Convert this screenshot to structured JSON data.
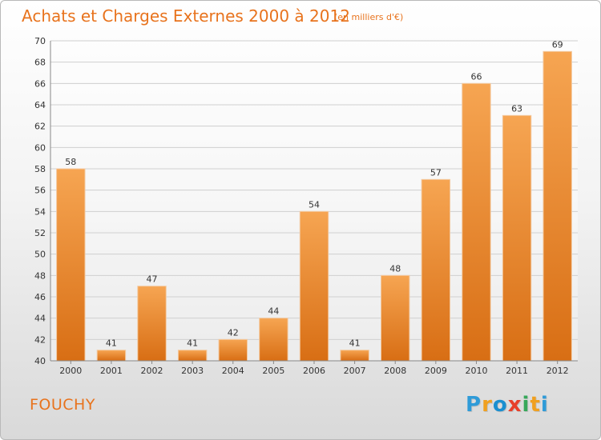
{
  "header": {
    "title": "Achats et Charges Externes 2000 à 2012",
    "subtitle": "(en milliers d'€)"
  },
  "footer": {
    "location": "FOUCHY",
    "logo_letters": [
      {
        "char": "P",
        "color": "#2f9bd8"
      },
      {
        "char": "r",
        "color": "#f0a020"
      },
      {
        "char": "o",
        "color": "#1a8fd0"
      },
      {
        "char": "x",
        "color": "#e8402a"
      },
      {
        "char": "i",
        "color": "#36a85a"
      },
      {
        "char": "t",
        "color": "#f0a020"
      },
      {
        "char": "i",
        "color": "#2f9bd8"
      }
    ]
  },
  "chart_data": {
    "type": "bar",
    "categories": [
      "2000",
      "2001",
      "2002",
      "2003",
      "2004",
      "2005",
      "2006",
      "2007",
      "2008",
      "2009",
      "2010",
      "2011",
      "2012"
    ],
    "values": [
      58,
      41,
      47,
      41,
      42,
      44,
      54,
      41,
      48,
      57,
      66,
      63,
      69
    ],
    "title": "Achats et Charges Externes 2000 à 2012",
    "xlabel": "",
    "ylabel": "",
    "ylim": [
      40,
      70
    ],
    "yticks": [
      40,
      42,
      44,
      46,
      48,
      50,
      52,
      54,
      56,
      58,
      60,
      62,
      64,
      66,
      68,
      70
    ],
    "grid": true,
    "bar_color_top": "#f6a552",
    "bar_color_bottom": "#d86e14"
  }
}
